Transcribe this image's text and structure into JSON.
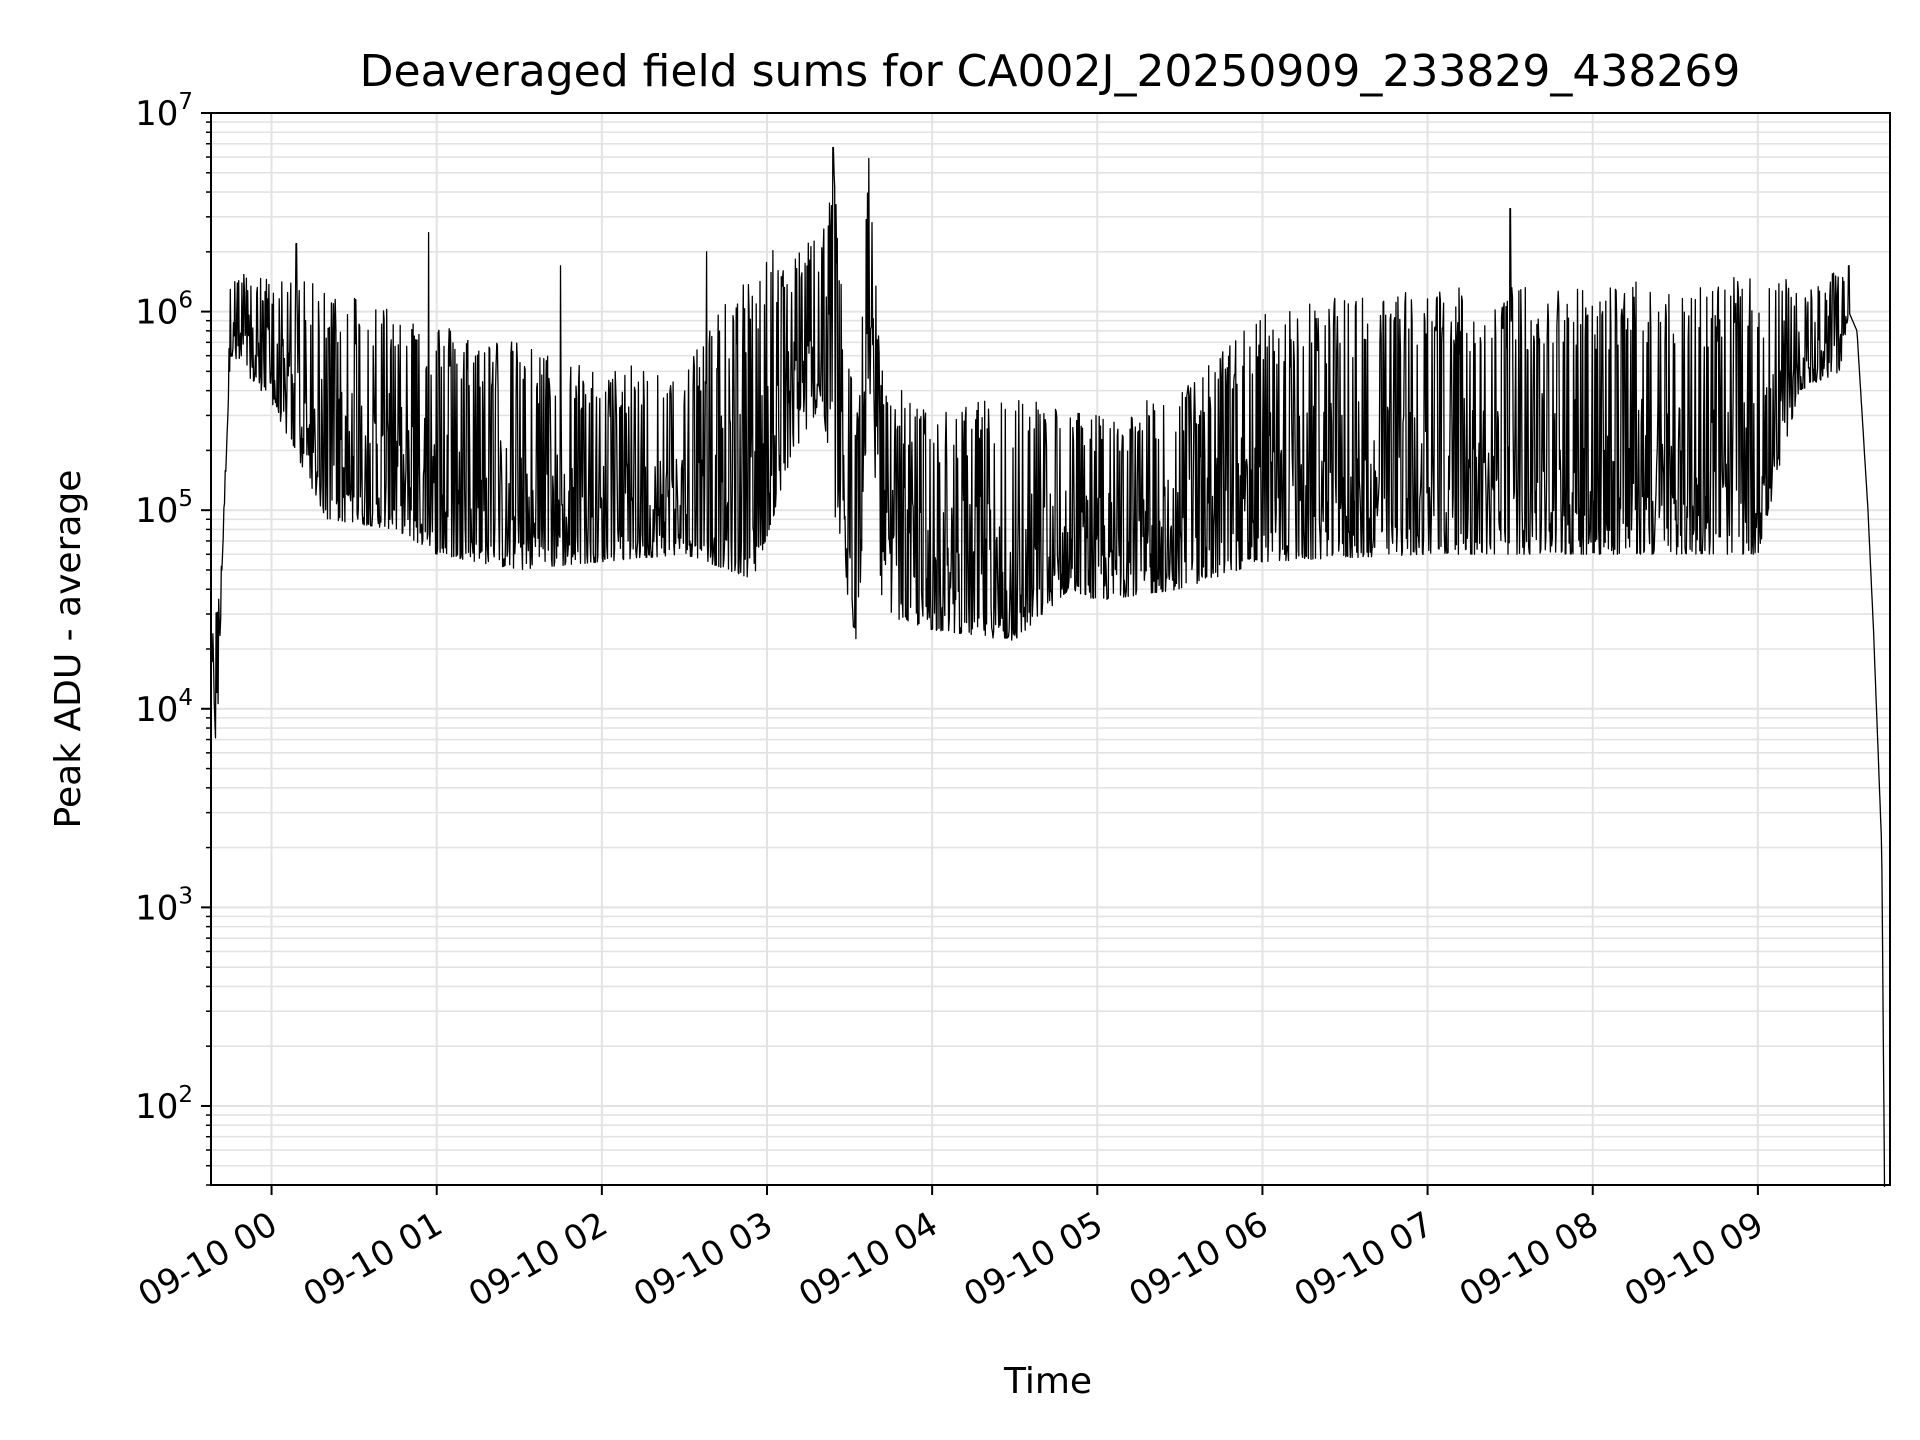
{
  "chart_data": {
    "type": "line",
    "title": "Deaveraged field sums for CA002J_20250909_233829_438269",
    "xlabel": "Time",
    "ylabel": "Peak ADU - average",
    "yscale": "log",
    "ylim": [
      40,
      10000000
    ],
    "xlim": [
      "2025-09-09 23:38",
      "2025-09-10 09:48"
    ],
    "grid": true,
    "line_color": "#000000",
    "grid_color": "#e3e3e3",
    "x_ticks": [
      {
        "x": "2025-09-10 00:00",
        "label": "09-10 00"
      },
      {
        "x": "2025-09-10 01:00",
        "label": "09-10 01"
      },
      {
        "x": "2025-09-10 02:00",
        "label": "09-10 02"
      },
      {
        "x": "2025-09-10 03:00",
        "label": "09-10 03"
      },
      {
        "x": "2025-09-10 04:00",
        "label": "09-10 04"
      },
      {
        "x": "2025-09-10 05:00",
        "label": "09-10 05"
      },
      {
        "x": "2025-09-10 06:00",
        "label": "09-10 06"
      },
      {
        "x": "2025-09-10 07:00",
        "label": "09-10 07"
      },
      {
        "x": "2025-09-10 08:00",
        "label": "09-10 08"
      },
      {
        "x": "2025-09-10 09:00",
        "label": "09-10 09"
      }
    ],
    "y_ticks": [
      {
        "y": 100,
        "base": "10",
        "exp": "2"
      },
      {
        "y": 1000,
        "base": "10",
        "exp": "3"
      },
      {
        "y": 10000,
        "base": "10",
        "exp": "4"
      },
      {
        "y": 100000,
        "base": "10",
        "exp": "5"
      },
      {
        "y": 1000000,
        "base": "10",
        "exp": "6"
      },
      {
        "y": 10000000,
        "base": "10",
        "exp": "7"
      }
    ],
    "series": [
      {
        "lower_envelope": [
          [
            "2025-09-09 23:38",
            20000
          ],
          [
            "2025-09-09 23:39",
            12000
          ],
          [
            "2025-09-09 23:40",
            5000
          ],
          [
            "2025-09-09 23:42",
            50000
          ],
          [
            "2025-09-09 23:45",
            600000
          ],
          [
            "2025-09-10 00:00",
            350000
          ],
          [
            "2025-09-10 00:20",
            90000
          ],
          [
            "2025-09-10 00:45",
            80000
          ],
          [
            "2025-09-10 01:00",
            60000
          ],
          [
            "2025-09-10 01:30",
            50000
          ],
          [
            "2025-09-10 02:00",
            55000
          ],
          [
            "2025-09-10 02:30",
            60000
          ],
          [
            "2025-09-10 02:55",
            45000
          ],
          [
            "2025-09-10 03:10",
            200000
          ],
          [
            "2025-09-10 03:20",
            350000
          ],
          [
            "2025-09-10 03:27",
            50000
          ],
          [
            "2025-09-10 03:33",
            20000
          ],
          [
            "2025-09-10 03:37",
            500000
          ],
          [
            "2025-09-10 03:42",
            30000
          ],
          [
            "2025-09-10 04:00",
            25000
          ],
          [
            "2025-09-10 04:30",
            22000
          ],
          [
            "2025-09-10 04:50",
            40000
          ],
          [
            "2025-09-10 05:00",
            35000
          ],
          [
            "2025-09-10 05:30",
            40000
          ],
          [
            "2025-09-10 06:00",
            55000
          ],
          [
            "2025-09-10 07:00",
            60000
          ],
          [
            "2025-09-10 08:00",
            60000
          ],
          [
            "2025-09-10 09:00",
            60000
          ],
          [
            "2025-09-10 09:15",
            400000
          ],
          [
            "2025-09-10 09:30",
            500000
          ],
          [
            "2025-09-10 09:33",
            1000000
          ],
          [
            "2025-09-10 09:36",
            800000
          ],
          [
            "2025-09-10 09:40",
            100000
          ],
          [
            "2025-09-10 09:42",
            25000
          ],
          [
            "2025-09-10 09:45",
            2000
          ],
          [
            "2025-09-10 09:46",
            40
          ]
        ],
        "upper_envelope": [
          [
            "2025-09-09 23:38",
            20000
          ],
          [
            "2025-09-09 23:42",
            60000
          ],
          [
            "2025-09-09 23:45",
            1600000
          ],
          [
            "2025-09-10 00:00",
            1500000
          ],
          [
            "2025-09-10 00:30",
            1300000
          ],
          [
            "2025-09-10 01:00",
            900000
          ],
          [
            "2025-09-10 01:30",
            700000
          ],
          [
            "2025-09-10 02:00",
            500000
          ],
          [
            "2025-09-10 02:30",
            600000
          ],
          [
            "2025-09-10 03:00",
            2000000
          ],
          [
            "2025-09-10 03:20",
            2500000
          ],
          [
            "2025-09-10 03:24",
            6500000
          ],
          [
            "2025-09-10 03:28",
            1000000
          ],
          [
            "2025-09-10 03:33",
            400000
          ],
          [
            "2025-09-10 03:37",
            6000000
          ],
          [
            "2025-09-10 03:42",
            500000
          ],
          [
            "2025-09-10 04:00",
            300000
          ],
          [
            "2025-09-10 04:30",
            400000
          ],
          [
            "2025-09-10 05:00",
            300000
          ],
          [
            "2025-09-10 05:30",
            400000
          ],
          [
            "2025-09-10 06:00",
            1000000
          ],
          [
            "2025-09-10 06:30",
            1200000
          ],
          [
            "2025-09-10 07:00",
            1300000
          ],
          [
            "2025-09-10 08:00",
            1400000
          ],
          [
            "2025-09-10 09:00",
            1500000
          ],
          [
            "2025-09-10 09:20",
            1400000
          ],
          [
            "2025-09-10 09:33",
            1700000
          ]
        ],
        "spikes": [
          [
            "2025-09-10 00:09",
            2200000
          ],
          [
            "2025-09-10 00:57",
            2500000
          ],
          [
            "2025-09-10 01:45",
            1700000
          ],
          [
            "2025-09-10 02:38",
            2000000
          ],
          [
            "2025-09-10 03:24",
            6700000
          ],
          [
            "2025-09-10 03:37",
            5900000
          ],
          [
            "2025-09-10 07:30",
            3300000
          ],
          [
            "2025-09-10 09:33",
            1700000
          ]
        ]
      }
    ]
  }
}
